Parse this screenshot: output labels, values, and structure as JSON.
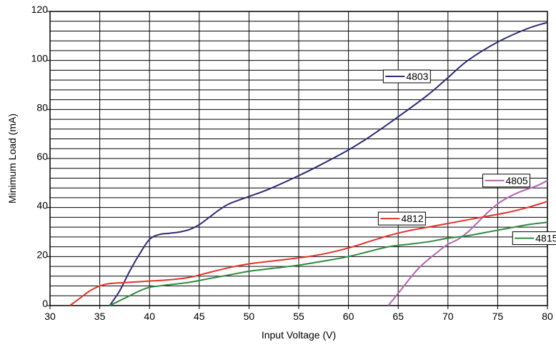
{
  "chart_data": {
    "type": "line",
    "xlabel": "Input Voltage (V)",
    "ylabel": "Minimum Load (mA)",
    "xlim": [
      30,
      80
    ],
    "ylim": [
      0,
      120
    ],
    "x_ticks": [
      30,
      35,
      40,
      45,
      50,
      55,
      60,
      65,
      70,
      75,
      80
    ],
    "y_ticks": [
      0,
      20,
      40,
      60,
      80,
      100,
      120
    ],
    "y_minor_step": 4,
    "grid": true,
    "series": [
      {
        "name": "4803",
        "color": "#2e2a78",
        "x": [
          36,
          37,
          38,
          39,
          40,
          41,
          42,
          43,
          44,
          45,
          46,
          47,
          48,
          50,
          52,
          55,
          57,
          60,
          62,
          65,
          68,
          70,
          72,
          75,
          78,
          80
        ],
        "y": [
          0,
          6,
          14,
          21,
          27,
          29,
          29.5,
          30,
          31,
          33,
          36,
          39,
          41.5,
          44.5,
          47.5,
          53,
          57,
          63.5,
          68.5,
          77,
          86,
          93,
          100,
          107.5,
          113,
          115.5
        ]
      },
      {
        "name": "4805",
        "color": "#b364b0",
        "x": [
          64,
          65,
          67,
          69,
          70,
          71,
          72,
          73,
          74,
          75,
          76,
          77,
          78,
          79,
          80
        ],
        "y": [
          0,
          5,
          15,
          22,
          25,
          27,
          30,
          34,
          38,
          41.5,
          44,
          46,
          47.5,
          49,
          51
        ]
      },
      {
        "name": "4812",
        "color": "#e4322b",
        "x": [
          32,
          33,
          34,
          35,
          36,
          38,
          40,
          42,
          44,
          46,
          48,
          50,
          53,
          56,
          58,
          60,
          62,
          64,
          66,
          68,
          70,
          72,
          74,
          76,
          78,
          80
        ],
        "y": [
          0,
          3,
          6,
          8,
          9,
          9.5,
          10,
          10.5,
          11.5,
          13.5,
          15.5,
          17,
          18.5,
          20,
          21.5,
          23.5,
          26,
          28.5,
          30.5,
          32,
          33.5,
          35,
          36.5,
          38,
          40,
          42.5
        ]
      },
      {
        "name": "4815",
        "color": "#2e8b3e",
        "x": [
          36,
          37,
          38,
          39,
          40,
          41,
          42,
          44,
          46,
          48,
          50,
          52,
          55,
          58,
          60,
          62,
          64,
          66,
          68,
          70,
          72,
          74,
          76,
          78,
          80
        ],
        "y": [
          0,
          2,
          4,
          6,
          7.5,
          8,
          8.5,
          9.5,
          11,
          12.5,
          14,
          15,
          16.5,
          18.5,
          20,
          22,
          24,
          25,
          26,
          27.5,
          28.5,
          30,
          31.5,
          33,
          34
        ]
      }
    ],
    "annotations": [
      {
        "series": "4803",
        "label": "4803",
        "x": 63.5,
        "y": 93.5
      },
      {
        "series": "4805",
        "label": "4805",
        "x": 73.5,
        "y": 51
      },
      {
        "series": "4812",
        "label": "4812",
        "x": 63,
        "y": 35.5
      },
      {
        "series": "4815",
        "label": "4815",
        "x": 76.5,
        "y": 27.5
      }
    ]
  }
}
